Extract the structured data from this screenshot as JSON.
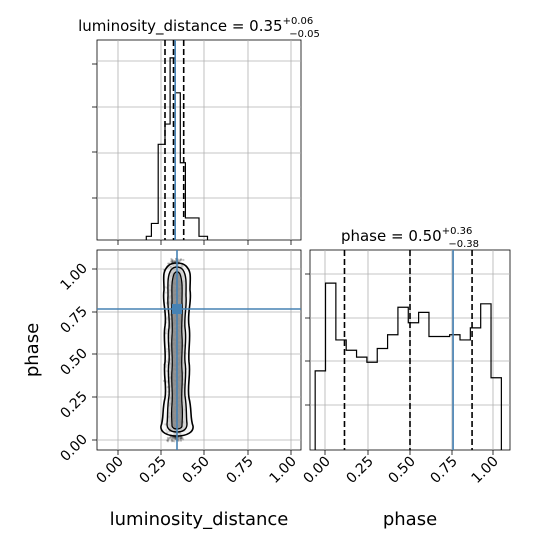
{
  "chart_data": [
    {
      "type": "histogram",
      "panel": "luminosity_distance-marginal",
      "title_main": "luminosity_distance = 0.35",
      "title_sup": "+0.06",
      "title_sub": "−0.05",
      "xlim": [
        -0.1,
        1.1
      ],
      "bins": [
        {
          "x0": 0.19,
          "x1": 0.22,
          "h": 0.02
        },
        {
          "x0": 0.22,
          "x1": 0.26,
          "h": 0.09
        },
        {
          "x0": 0.26,
          "x1": 0.3,
          "h": 0.52
        },
        {
          "x0": 0.3,
          "x1": 0.33,
          "h": 0.63
        },
        {
          "x0": 0.33,
          "x1": 0.36,
          "h": 0.99
        },
        {
          "x0": 0.36,
          "x1": 0.39,
          "h": 0.8
        },
        {
          "x0": 0.39,
          "x1": 0.42,
          "h": 0.42
        },
        {
          "x0": 0.42,
          "x1": 0.5,
          "h": 0.12
        },
        {
          "x0": 0.5,
          "x1": 0.55,
          "h": 0.02
        }
      ],
      "quantiles": [
        0.3,
        0.35,
        0.41
      ],
      "truth": 0.36
    },
    {
      "type": "histogram",
      "panel": "phase-marginal",
      "title_main": "phase = 0.50",
      "title_sup": "+0.36",
      "title_sub": "−0.38",
      "xlabel": "phase",
      "xlim": [
        -0.08,
        1.08
      ],
      "ticks": [
        "0.00",
        "0.25",
        "0.50",
        "0.75",
        "1.00"
      ],
      "bins": [
        {
          "x0": -0.05,
          "x1": 0.01,
          "h": 0.46
        },
        {
          "x0": 0.01,
          "x1": 0.07,
          "h": 0.97
        },
        {
          "x0": 0.07,
          "x1": 0.13,
          "h": 0.64
        },
        {
          "x0": 0.13,
          "x1": 0.19,
          "h": 0.58
        },
        {
          "x0": 0.19,
          "x1": 0.25,
          "h": 0.54
        },
        {
          "x0": 0.25,
          "x1": 0.31,
          "h": 0.51
        },
        {
          "x0": 0.31,
          "x1": 0.37,
          "h": 0.59
        },
        {
          "x0": 0.37,
          "x1": 0.43,
          "h": 0.67
        },
        {
          "x0": 0.43,
          "x1": 0.49,
          "h": 0.83
        },
        {
          "x0": 0.49,
          "x1": 0.55,
          "h": 0.74
        },
        {
          "x0": 0.55,
          "x1": 0.61,
          "h": 0.8
        },
        {
          "x0": 0.61,
          "x1": 0.67,
          "h": 0.66
        },
        {
          "x0": 0.67,
          "x1": 0.73,
          "h": 0.66
        },
        {
          "x0": 0.73,
          "x1": 0.79,
          "h": 0.67
        },
        {
          "x0": 0.79,
          "x1": 0.85,
          "h": 0.64
        },
        {
          "x0": 0.85,
          "x1": 0.91,
          "h": 0.71
        },
        {
          "x0": 0.91,
          "x1": 0.97,
          "h": 0.85
        },
        {
          "x0": 0.97,
          "x1": 1.03,
          "h": 0.42
        }
      ],
      "quantiles": [
        0.12,
        0.5,
        0.86
      ],
      "truth": 0.75
    },
    {
      "type": "scatter",
      "panel": "2d-posterior",
      "xlabel": "luminosity_distance",
      "ylabel": "phase",
      "xlim": [
        -0.1,
        1.1
      ],
      "ylim": [
        -0.08,
        1.08
      ],
      "xticks": [
        "0.00",
        "0.25",
        "0.50",
        "0.75",
        "1.00"
      ],
      "yticks": [
        "0.00",
        "0.25",
        "0.50",
        "0.75",
        "1.00"
      ],
      "sample_center_x": 0.36,
      "sample_sigma_x": 0.045,
      "sample_y_range": [
        -0.03,
        1.03
      ],
      "truth": {
        "x": 0.36,
        "y": 0.75
      },
      "color_truth": "#4682b4"
    }
  ]
}
